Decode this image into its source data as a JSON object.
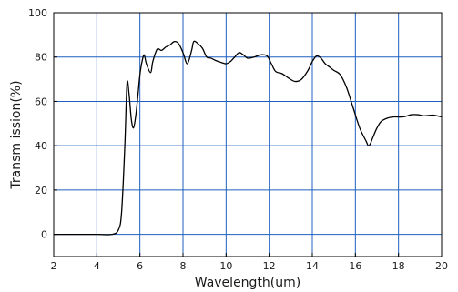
{
  "chart_data": {
    "type": "line",
    "title": "",
    "xlabel": "Wavelength(um)",
    "ylabel": "Transm ission(%)",
    "xlim": [
      2,
      20
    ],
    "ylim": [
      -10,
      100
    ],
    "x_ticks": [
      2,
      4,
      6,
      8,
      10,
      12,
      14,
      16,
      18,
      20
    ],
    "y_ticks": [
      0,
      20,
      40,
      60,
      80,
      100
    ],
    "grid": true,
    "grid_color": "#1f5fbf",
    "line_color": "#000000",
    "series": [
      {
        "x": [
          2.0,
          3.0,
          4.0,
          4.7,
          5.0,
          5.15,
          5.3,
          5.4,
          5.5,
          5.6,
          5.7,
          5.8,
          5.9,
          6.0,
          6.1,
          6.2,
          6.3,
          6.5,
          6.6,
          6.8,
          7.0,
          7.2,
          7.4,
          7.6,
          7.8,
          8.0,
          8.2,
          8.4,
          8.5,
          8.7,
          8.9,
          9.1,
          9.3,
          9.5,
          9.8,
          10.0,
          10.2,
          10.4,
          10.6,
          10.8,
          11.0,
          11.3,
          11.6,
          11.9,
          12.1,
          12.3,
          12.6,
          12.9,
          13.2,
          13.5,
          13.8,
          14.0,
          14.2,
          14.4,
          14.6,
          14.8,
          15.0,
          15.3,
          15.6,
          15.9,
          16.2,
          16.5,
          16.6,
          16.7,
          16.8,
          17.0,
          17.2,
          17.5,
          17.8,
          18.2,
          18.6,
          18.9,
          19.2,
          19.6,
          20.0
        ],
        "y": [
          0,
          0,
          0,
          0,
          2,
          10,
          40,
          68,
          63,
          52,
          48,
          53,
          62,
          72,
          78,
          81,
          77,
          73,
          78,
          83.5,
          83,
          84.5,
          85.5,
          87,
          86,
          82,
          77,
          83,
          87,
          86,
          84,
          80,
          79.5,
          78.5,
          77.5,
          77,
          78,
          80,
          82,
          81,
          79.5,
          80,
          81,
          80.5,
          77,
          73.5,
          72.5,
          70.5,
          69,
          70,
          74,
          78,
          80.5,
          79.5,
          77,
          75.5,
          74,
          72,
          66,
          57,
          48,
          42,
          40,
          41,
          43.5,
          48,
          51,
          52.5,
          53,
          53,
          54,
          54,
          53.5,
          53.8,
          53
        ]
      }
    ]
  }
}
